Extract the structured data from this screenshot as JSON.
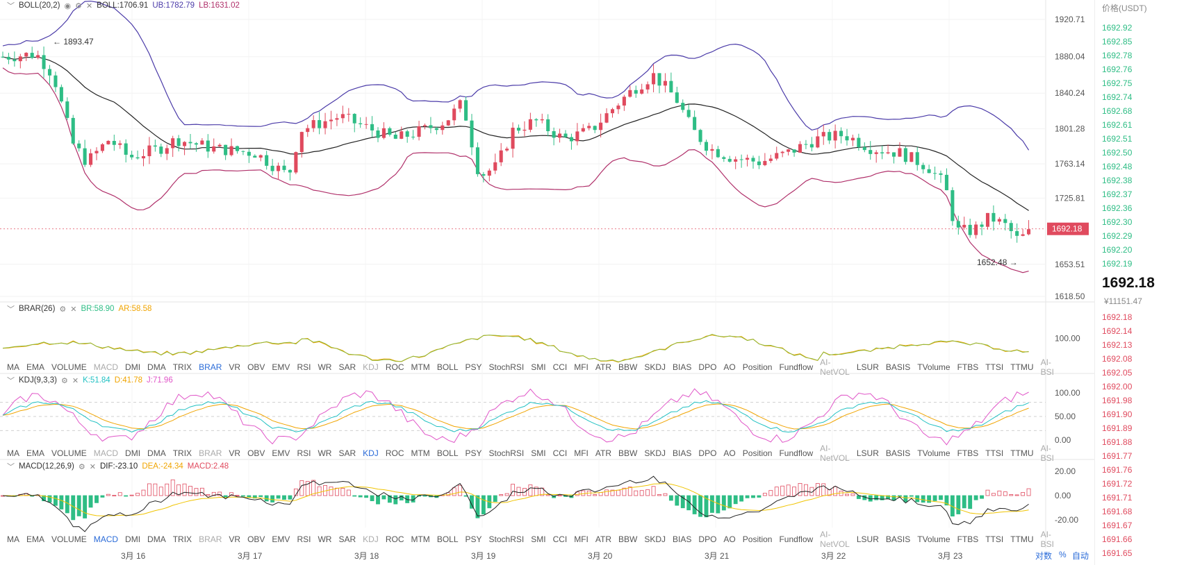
{
  "indicators_toolbar": [
    "MA",
    "EMA",
    "VOLUME",
    "MACD",
    "DMI",
    "DMA",
    "TRIX",
    "BRAR",
    "VR",
    "OBV",
    "EMV",
    "RSI",
    "WR",
    "SAR",
    "KDJ",
    "ROC",
    "MTM",
    "BOLL",
    "PSY",
    "StochRSI",
    "SMI",
    "CCI",
    "MFI",
    "ATR",
    "BBW",
    "SKDJ",
    "BIAS",
    "DPO",
    "AO",
    "Position",
    "Fundflow",
    "AI-NetVOL",
    "LSUR",
    "BASIS",
    "TVolume",
    "FTBS",
    "TTSI",
    "TTMU",
    "AI-BSI"
  ],
  "dim_indicators": [
    "MACD",
    "BRAR",
    "KDJ",
    "AI-NetVOL",
    "AI-BSI"
  ],
  "toolbars": [
    {
      "active": "BRAR"
    },
    {
      "active": "KDJ"
    },
    {
      "active": "MACD"
    }
  ],
  "main": {
    "legend": {
      "name": "BOLL(20,2)",
      "boll": "BOLL:1706.91",
      "ub": "UB:1782.79",
      "lb": "LB:1631.02"
    },
    "y_ticks": [
      "1920.71",
      "1880.04",
      "1840.24",
      "1801.28",
      "1763.14",
      "1725.81",
      "1653.51",
      "1618.50"
    ],
    "last_price_tag": "1692.18",
    "high_marker": "← 1893.47",
    "low_marker": "1652.48 →"
  },
  "brar": {
    "legend": {
      "name": "BRAR(26)",
      "br": "BR:58.90",
      "ar": "AR:58.58"
    },
    "y_ticks": [
      "100.00"
    ]
  },
  "kdj": {
    "legend": {
      "name": "KDJ(9,3,3)",
      "k": "K:51.84",
      "d": "D:41.78",
      "j": "J:71.96"
    },
    "y_ticks": [
      "100.00",
      "50.00",
      "0.00"
    ]
  },
  "macd": {
    "legend": {
      "name": "MACD(12,26,9)",
      "dif": "DIF:-23.10",
      "dea": "DEA:-24.34",
      "macd": "MACD:2.48"
    },
    "y_ticks": [
      "20.00",
      "0.00",
      "-20.00"
    ]
  },
  "x_dates": [
    "3月 16",
    "3月 17",
    "3月 18",
    "3月 19",
    "3月 20",
    "3月 21",
    "3月 22",
    "3月 23"
  ],
  "bottom_right": {
    "log": "对数",
    "pct": "%",
    "auto": "自动"
  },
  "order_book": {
    "header": "价格(USDT)",
    "asks": [
      "1692.92",
      "1692.85",
      "1692.78",
      "1692.76",
      "1692.75",
      "1692.74",
      "1692.68",
      "1692.61",
      "1692.51",
      "1692.50",
      "1692.48",
      "1692.38",
      "1692.37",
      "1692.36",
      "1692.30",
      "1692.29",
      "1692.20",
      "1692.19"
    ],
    "last_price": "1692.18",
    "cny": "¥11151.47",
    "bids": [
      "1692.18",
      "1692.14",
      "1692.13",
      "1692.08",
      "1692.05",
      "1692.00",
      "1691.98",
      "1691.90",
      "1691.89",
      "1691.88",
      "1691.77",
      "1691.76",
      "1691.72",
      "1691.71",
      "1691.68",
      "1691.67",
      "1691.66",
      "1691.65"
    ]
  },
  "colors": {
    "up": "#2ebd85",
    "down": "#e04a5e",
    "boll_mid": "#222222",
    "boll_up": "#4a3aa8",
    "boll_low": "#b0306a",
    "k": "#22c1c3",
    "d": "#f0a400",
    "j": "#e055c8",
    "ask": "#2ebd85",
    "bid": "#e04a5e"
  }
}
